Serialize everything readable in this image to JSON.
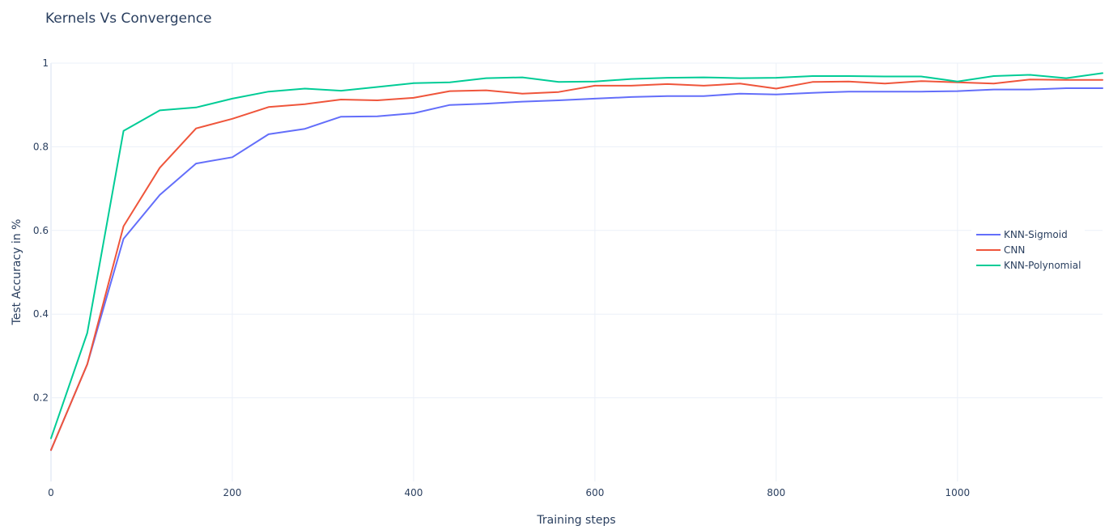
{
  "chart_data": {
    "type": "line",
    "title": "Kernels Vs Convergence",
    "xlabel": "Training steps",
    "ylabel": "Test Accuracy in %",
    "xlim": [
      0,
      1160
    ],
    "ylim": [
      0,
      1.0
    ],
    "xticks": [
      0,
      200,
      400,
      600,
      800,
      1000
    ],
    "yticks": [
      0.2,
      0.4,
      0.6,
      0.8,
      1
    ],
    "x": [
      0,
      40,
      80,
      120,
      160,
      200,
      240,
      280,
      320,
      360,
      400,
      440,
      480,
      520,
      560,
      600,
      640,
      680,
      720,
      760,
      800,
      840,
      880,
      920,
      960,
      1000,
      1040,
      1080,
      1120,
      1160
    ],
    "grid": true,
    "legend_position": "right",
    "series": [
      {
        "name": "KNN-Sigmoid",
        "color": "#636efa",
        "values": [
          0.075,
          0.28,
          0.58,
          0.685,
          0.76,
          0.775,
          0.83,
          0.843,
          0.872,
          0.873,
          0.88,
          0.9,
          0.903,
          0.908,
          0.911,
          0.915,
          0.919,
          0.921,
          0.921,
          0.927,
          0.925,
          0.929,
          0.932,
          0.932,
          0.932,
          0.933,
          0.937,
          0.937,
          0.94,
          0.94
        ]
      },
      {
        "name": "CNN",
        "color": "#ef553b",
        "values": [
          0.075,
          0.28,
          0.61,
          0.75,
          0.844,
          0.867,
          0.895,
          0.902,
          0.913,
          0.911,
          0.917,
          0.933,
          0.935,
          0.927,
          0.931,
          0.946,
          0.946,
          0.95,
          0.946,
          0.951,
          0.939,
          0.955,
          0.956,
          0.951,
          0.957,
          0.954,
          0.951,
          0.961,
          0.96,
          0.96
        ]
      },
      {
        "name": "KNN-Polynomial",
        "color": "#00cc96",
        "values": [
          0.103,
          0.355,
          0.838,
          0.887,
          0.894,
          0.915,
          0.932,
          0.939,
          0.934,
          0.943,
          0.952,
          0.954,
          0.964,
          0.966,
          0.955,
          0.956,
          0.962,
          0.965,
          0.966,
          0.964,
          0.965,
          0.969,
          0.969,
          0.968,
          0.968,
          0.956,
          0.969,
          0.972,
          0.964,
          0.976
        ]
      }
    ]
  }
}
